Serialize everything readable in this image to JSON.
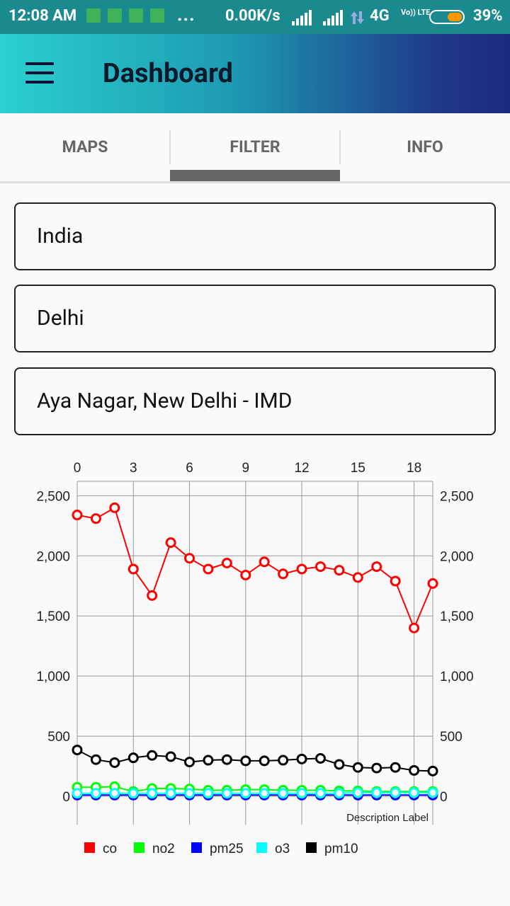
{
  "status_bar": {
    "time": "12:08 AM",
    "speed": "0.00K/s",
    "network": "4G",
    "volte": "Vo)) LTE",
    "battery": "39%",
    "more": "..."
  },
  "app_bar": {
    "title": "Dashboard"
  },
  "tabs": [
    {
      "label": "MAPS"
    },
    {
      "label": "FILTER"
    },
    {
      "label": "INFO"
    }
  ],
  "active_tab": 1,
  "filters": {
    "country": "India",
    "city": "Delhi",
    "station": "Aya Nagar, New Delhi - IMD"
  },
  "chart_data": {
    "type": "line",
    "x": [
      0,
      1,
      2,
      3,
      4,
      5,
      6,
      7,
      8,
      9,
      10,
      11,
      12,
      13,
      14,
      15,
      16,
      17,
      18,
      19
    ],
    "xticks": [
      0,
      3,
      6,
      9,
      12,
      15,
      18
    ],
    "yticks": [
      0,
      500,
      1000,
      1500,
      2000,
      2500
    ],
    "ytick_labels": [
      "0",
      "500",
      "1,000",
      "1,500",
      "2,000",
      "2,500"
    ],
    "ylim": [
      0,
      2620
    ],
    "xlim": [
      0,
      19
    ],
    "description_label": "Description Label",
    "series": [
      {
        "name": "co",
        "color": "#ff0000",
        "values": [
          2340,
          2310,
          2400,
          1890,
          1670,
          2110,
          1980,
          1890,
          1940,
          1840,
          1950,
          1850,
          1890,
          1910,
          1880,
          1820,
          1910,
          1790,
          1400,
          1770
        ]
      },
      {
        "name": "no2",
        "color": "#00ff00",
        "values": [
          75,
          75,
          80,
          40,
          65,
          65,
          60,
          50,
          50,
          55,
          55,
          50,
          50,
          50,
          45,
          45,
          40,
          40,
          40,
          40
        ]
      },
      {
        "name": "pm25",
        "color": "#0000ff",
        "values": [
          10,
          10,
          10,
          10,
          10,
          10,
          10,
          10,
          10,
          10,
          10,
          10,
          10,
          10,
          10,
          10,
          10,
          10,
          10,
          10
        ]
      },
      {
        "name": "o3",
        "color": "#00ffff",
        "values": [
          25,
          25,
          25,
          25,
          25,
          25,
          25,
          25,
          25,
          25,
          25,
          25,
          25,
          25,
          25,
          30,
          30,
          30,
          30,
          30
        ]
      },
      {
        "name": "pm10",
        "color": "#000000",
        "values": [
          385,
          305,
          280,
          320,
          340,
          330,
          285,
          300,
          305,
          295,
          295,
          300,
          310,
          315,
          265,
          240,
          235,
          240,
          215,
          210
        ]
      }
    ]
  }
}
